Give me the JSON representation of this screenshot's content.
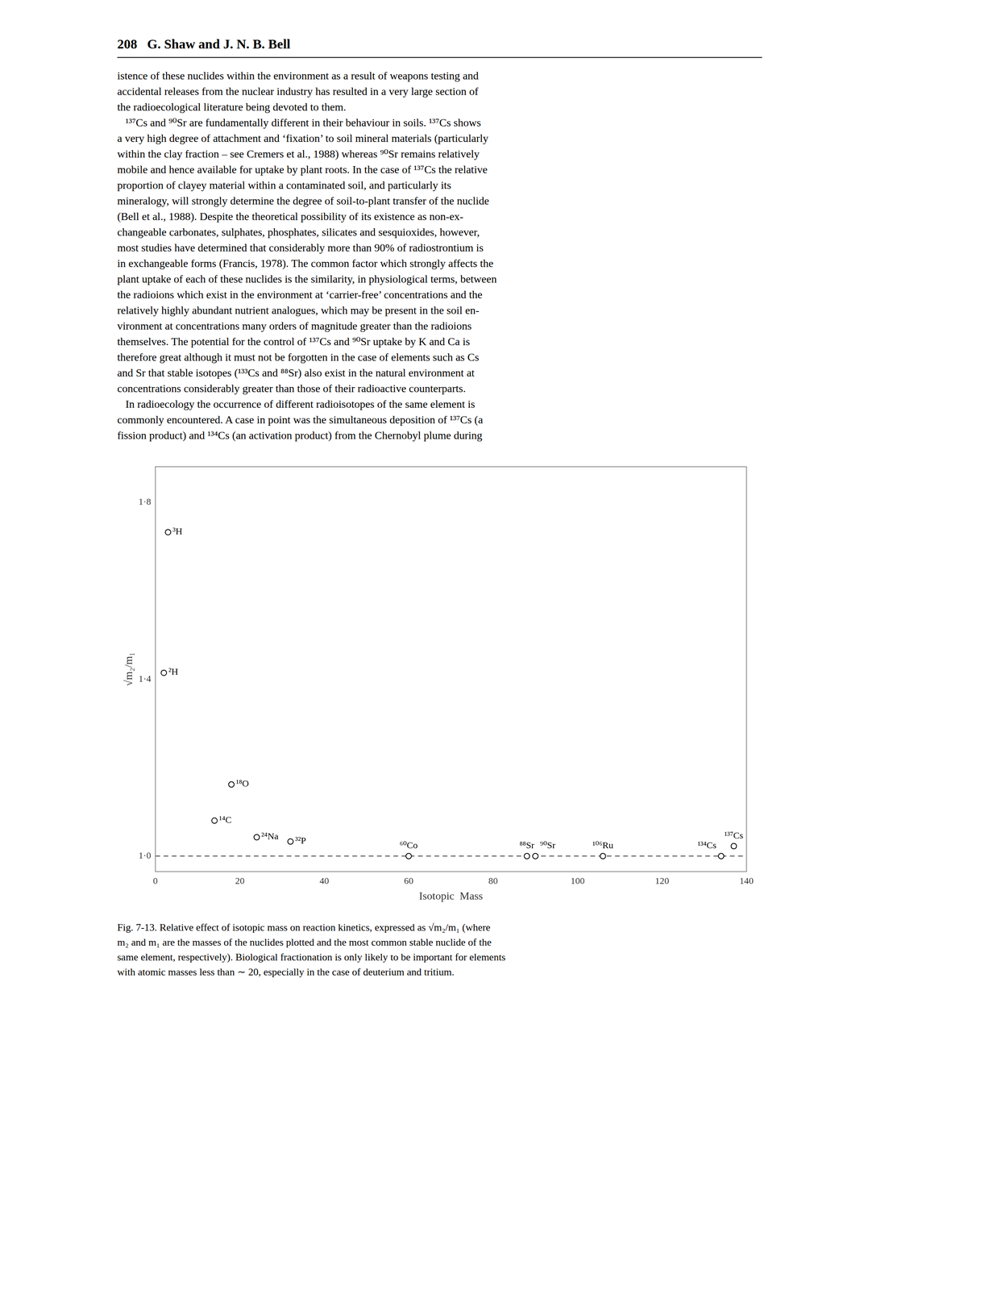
{
  "chart_data": {
    "type": "scatter",
    "x_label": "Isotopic  Mass",
    "y_label": "√m₂/m₁",
    "x": [
      3,
      2,
      18,
      14,
      24,
      32,
      60,
      88,
      90,
      106,
      134,
      137
    ],
    "values": [
      1.7321,
      1.4142,
      1.1619,
      1.0801,
      1.0426,
      1.0328,
      1.0,
      1.0,
      1.0,
      1.0,
      1.0,
      1.0225
    ],
    "point_labels": [
      "³H",
      "²H",
      "¹⁸O",
      "¹⁴C",
      "²⁴Na",
      "³²P",
      "⁶⁰Co",
      "⁸⁸Sr",
      "⁹⁰Sr",
      "¹⁰⁶Ru",
      "¹³⁴Cs",
      "¹³⁷Cs"
    ],
    "color": "#000000",
    "marker": "open_circle",
    "xlim": [
      0,
      140
    ],
    "xticks": [
      0,
      20,
      40,
      60,
      80,
      100,
      120,
      140
    ],
    "ylim": [
      0.965,
      1.88
    ],
    "yticks": [
      {
        "value": 1.0,
        "label": "1·0"
      },
      {
        "value": 1.4,
        "label": "1·4"
      },
      {
        "value": 1.8,
        "label": "1·8"
      }
    ],
    "reference_lines": [
      {
        "y": 1.0,
        "line_style": "dashed"
      }
    ],
    "grid": false
  },
  "page_header": "208   G. Shaw and J. N. B. Bell",
  "body_lines": [
    "istence of these nuclides within the environment as a result of weapons testing and",
    "accidental releases from the nuclear industry has resulted in a very large section of",
    "the radioecological literature being devoted to them.",
    "   ¹³⁷Cs and ⁹⁰Sr are fundamentally different in their behaviour in soils. ¹³⁷Cs shows",
    "a very high degree of attachment and ‘fixation’ to soil mineral materials (particularly",
    "within the clay fraction – see Cremers et al., 1988) whereas ⁹⁰Sr remains relatively",
    "mobile and hence available for uptake by plant roots. In the case of ¹³⁷Cs the relative",
    "proportion of clayey material within a contaminated soil, and particularly its",
    "mineralogy, will strongly determine the degree of soil-to-plant transfer of the nuclide",
    "(Bell et al., 1988). Despite the theoretical possibility of its existence as non-ex-",
    "changeable carbonates, sulphates, phosphates, silicates and sesquioxides, however,",
    "most studies have determined that considerably more than 90% of radiostrontium is",
    "in exchangeable forms (Francis, 1978). The common factor which strongly affects the",
    "plant uptake of each of these nuclides is the similarity, in physiological terms, between",
    "the radioions which exist in the environment at ‘carrier-free’ concentrations and the",
    "relatively highly abundant nutrient analogues, which may be present in the soil en-",
    "vironment at concentrations many orders of magnitude greater than the radioions",
    "themselves. The potential for the control of ¹³⁷Cs and ⁹⁰Sr uptake by K and Ca is",
    "therefore great although it must not be forgotten in the case of elements such as Cs",
    "and Sr that stable isotopes (¹³³Cs and ⁸⁸Sr) also exist in the natural environment at",
    "concentrations considerably greater than those of their radioactive counterparts.",
    "   In radioecology the occurrence of different radioisotopes of the same element is",
    "commonly encountered. A case in point was the simultaneous deposition of ¹³⁷Cs (a",
    "fission product) and ¹³⁴Cs (an activation product) from the Chernobyl plume during"
  ],
  "caption_lines": [
    "Fig. 7-13. Relative effect of isotopic mass on reaction kinetics, expressed as √m₂/m₁ (where",
    "m₂ and m₁ are the masses of the nuclides plotted and the most common stable nuclide of the",
    "same element, respectively). Biological fractionation is only likely to be important for elements",
    "with atomic masses less than ∼ 20, especially in the case of deuterium and tritium."
  ]
}
